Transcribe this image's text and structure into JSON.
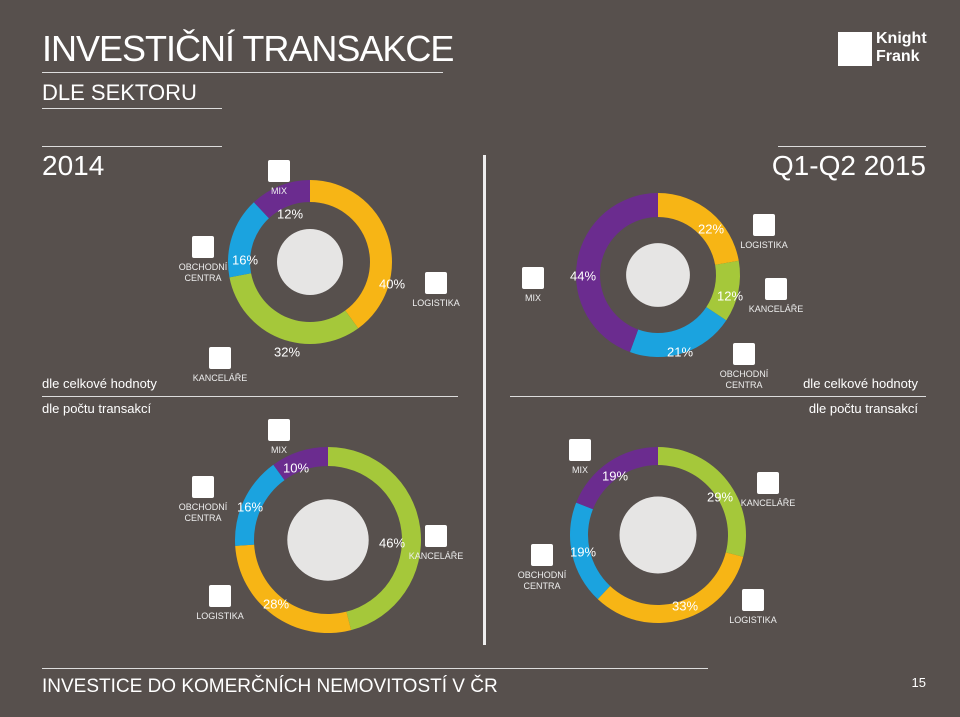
{
  "header": {
    "title": "INVESTIČNÍ TRANSAKCE",
    "subtitle": "DLE SEKTORU",
    "logo": [
      "Knight",
      "Frank"
    ]
  },
  "periods": [
    "2014",
    "Q1-Q2 2015"
  ],
  "rows": [
    "dle celkové hodnoty",
    "dle počtu transakcí"
  ],
  "footer": {
    "text": "INVESTICE DO KOMERČNÍCH NEMOVITOSTÍ V ČR",
    "page": "15"
  },
  "chart_data": [
    {
      "type": "donut",
      "categories": [
        "LOGISTIKA",
        "KANCELÁŘE",
        "OBCHODNÍ CENTRA",
        "MIX"
      ],
      "values": [
        40,
        32,
        16,
        12
      ],
      "value_labels": [
        "40%",
        "32%",
        "16%",
        "12%"
      ],
      "colors": [
        "#f7b515",
        "#a5c83a",
        "#1ba3df",
        "#6b2c8f"
      ]
    },
    {
      "type": "donut",
      "categories": [
        "LOGISTIKA",
        "KANCELÁŘE",
        "OBCHODNÍ CENTRA",
        "MIX"
      ],
      "values": [
        22,
        12,
        21,
        44
      ],
      "value_labels": [
        "22%",
        "12%",
        "21%",
        "44%"
      ],
      "colors": [
        "#f7b515",
        "#a5c83a",
        "#1ba3df",
        "#6b2c8f"
      ]
    },
    {
      "type": "donut",
      "categories": [
        "KANCELÁŘE",
        "LOGISTIKA",
        "OBCHODNÍ CENTRA",
        "MIX"
      ],
      "values": [
        46,
        28,
        16,
        10
      ],
      "value_labels": [
        "46%",
        "28%",
        "16%",
        "10%"
      ],
      "colors": [
        "#a5c83a",
        "#f7b515",
        "#1ba3df",
        "#6b2c8f"
      ]
    },
    {
      "type": "donut",
      "categories": [
        "KANCELÁŘE",
        "LOGISTIKA",
        "OBCHODNÍ CENTRA",
        "MIX"
      ],
      "values": [
        29,
        33,
        19,
        19
      ],
      "value_labels": [
        "29%",
        "33%",
        "19%",
        "19%"
      ],
      "colors": [
        "#a5c83a",
        "#f7b515",
        "#1ba3df",
        "#6b2c8f"
      ]
    }
  ]
}
